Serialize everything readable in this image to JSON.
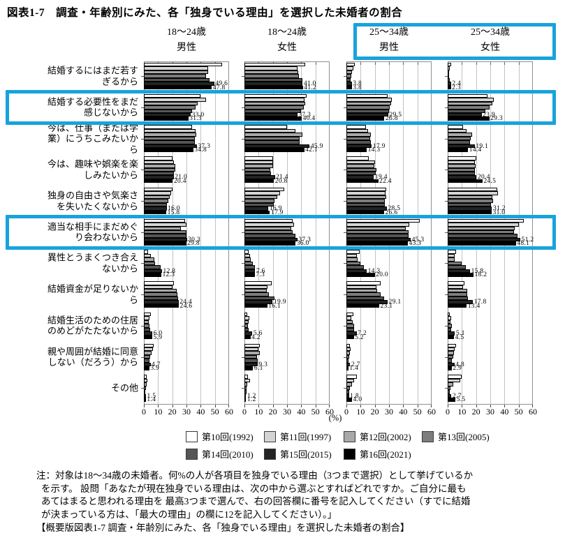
{
  "title": "図表1-7　調査・年齢別にみた、各「独身でいる理由」を選択した未婚者の割合",
  "chart_data": {
    "type": "bar",
    "orientation": "horizontal",
    "value_unit": "(%)",
    "xlim": [
      0,
      60
    ],
    "xticks": [
      0,
      10,
      20,
      30,
      40,
      50,
      60
    ],
    "grid": true,
    "legend_position": "bottom",
    "highlight_color": "#18a3dc",
    "series": [
      {
        "name": "第10回(1992)",
        "color": "#ffffff"
      },
      {
        "name": "第11回(1997)",
        "color": "#d4d4d4"
      },
      {
        "name": "第12回(2002)",
        "color": "#a9a9a9"
      },
      {
        "name": "第13回(2005)",
        "color": "#7d7d7d"
      },
      {
        "name": "第14回(2010)",
        "color": "#555555"
      },
      {
        "name": "第15回(2015)",
        "color": "#232323"
      },
      {
        "name": "第16回(2021)",
        "color": "#000000"
      }
    ],
    "labeled_series_indices": [
      5,
      6
    ],
    "categories": [
      "結婚するにはまだ若す\nぎるから",
      "結婚する必要性をまだ\n感じないから",
      "今は、仕事（または学\n業）にうちこみたいか\nら",
      "今は、趣味や娯楽を楽\nしみたいから",
      "独身の自由さや気楽さ\nを失いたくないから",
      "適当な相手にまだめぐ\nり会わないから",
      "異性とうまくつき合え\nないから",
      "結婚資金が足りないか\nら",
      "結婚生活のための住居\nのめどがたたないから",
      "親や周囲が結婚に同意\nしない（だろう）から",
      "その他"
    ],
    "highlighted_row_indices": [
      1,
      5
    ],
    "highlighted_categories": [
      "結婚する必要性をまだ感じないから",
      "適当な相手にまだめぐり会わないから"
    ],
    "panels": [
      {
        "age": "18～24歳",
        "sex": "男性",
        "highlighted": false,
        "values": [
          [
            55,
            45,
            45,
            44,
            46,
            49.6,
            47.8
          ],
          [
            40,
            44,
            38,
            36.5,
            34,
            33.0,
            31.3
          ],
          [
            34,
            36.5,
            37,
            36,
            36,
            37.3,
            34.8
          ],
          [
            20,
            21,
            22,
            22,
            21,
            21.0,
            20.4
          ],
          [
            20,
            19,
            18,
            17,
            16,
            16.0,
            15.8
          ],
          [
            29,
            30,
            26,
            30,
            30,
            30.3,
            29.8
          ],
          [
            3,
            5,
            7.5,
            8,
            12,
            12.8,
            12.3
          ],
          [
            21,
            20,
            23,
            23.5,
            24,
            24.4,
            24.6
          ],
          [
            5,
            4,
            3.5,
            4,
            4.5,
            6.0,
            5.9
          ],
          [
            7,
            6.5,
            5.5,
            4.5,
            4,
            4.7,
            3.9
          ],
          [
            2,
            2.5,
            2,
            1.5,
            1,
            1.5,
            1.4
          ]
        ]
      },
      {
        "age": "18～24歳",
        "sex": "女性",
        "highlighted": false,
        "values": [
          [
            43,
            37.5,
            38,
            38.5,
            41,
            41.0,
            41.2
          ],
          [
            44,
            42.5,
            43,
            42,
            40,
            37.3,
            40.4
          ],
          [
            30,
            36,
            41,
            39,
            39,
            45.9,
            42.1
          ],
          [
            20,
            20,
            20,
            18,
            18.5,
            21.4,
            20.8
          ],
          [
            28,
            25,
            23,
            21,
            20.5,
            16.9,
            17.9
          ],
          [
            34,
            35,
            33,
            34,
            36,
            37.3,
            36.0
          ],
          [
            3,
            4,
            4.5,
            6,
            7.5,
            7.6,
            7.3
          ],
          [
            19,
            16,
            15.5,
            17,
            21,
            19.9,
            16.1
          ],
          [
            2,
            3.5,
            3,
            2.5,
            3,
            5.6,
            4.2
          ],
          [
            11,
            10,
            11,
            9,
            9.5,
            9.3,
            6.1
          ],
          [
            2.5,
            4,
            2,
            1.5,
            1.5,
            1.2,
            1.2
          ]
        ]
      },
      {
        "age": "25～34歳",
        "sex": "男性",
        "highlighted": true,
        "values": [
          [
            6,
            5,
            4,
            3.5,
            3,
            3.8,
            3.8
          ],
          [
            29,
            32,
            31.5,
            30.5,
            30,
            29.5,
            26.8
          ],
          [
            14,
            15,
            17,
            16.5,
            17,
            17.9,
            14.3
          ],
          [
            15.5,
            20,
            19.5,
            21,
            20.5,
            19.4,
            22.4
          ],
          [
            28,
            27.5,
            28,
            27,
            27,
            28.5,
            26.6
          ],
          [
            51.5,
            44.5,
            42,
            44,
            44,
            45.3,
            43.3
          ],
          [
            9.5,
            7.5,
            8,
            10,
            12.5,
            14.3,
            20.0
          ],
          [
            24,
            21,
            21.5,
            24,
            26.5,
            29.1,
            23.1
          ],
          [
            5,
            3.5,
            4.5,
            5.5,
            5.5,
            7.2,
            5.2
          ],
          [
            2.5,
            3,
            2.5,
            2,
            1.5,
            2.7,
            1.4
          ],
          [
            7.5,
            5.5,
            4,
            2.5,
            2,
            1.8,
            4.0
          ]
        ]
      },
      {
        "age": "25～34歳",
        "sex": "女性",
        "highlighted": true,
        "values": [
          [
            2.5,
            1.5,
            1,
            1,
            1.5,
            2.4,
            2.3
          ],
          [
            28,
            32.5,
            31.5,
            29.5,
            26.5,
            23.9,
            29.3
          ],
          [
            11,
            13.5,
            17,
            16,
            15.5,
            19.1,
            14.4
          ],
          [
            20,
            19,
            19.5,
            19,
            19,
            20.4,
            24.5
          ],
          [
            35,
            35.5,
            31.5,
            32,
            30.5,
            31.2,
            31.0
          ],
          [
            53.5,
            50,
            47,
            46.5,
            49,
            51.2,
            48.1
          ],
          [
            6,
            5,
            5,
            10,
            13,
            15.8,
            18.2
          ],
          [
            12,
            11,
            14,
            14,
            14.5,
            17.8,
            13.4
          ],
          [
            1.5,
            2.5,
            2,
            3,
            2.5,
            5.1,
            4.5
          ],
          [
            6,
            5,
            4.5,
            4,
            3,
            4.8,
            2.9
          ],
          [
            10,
            9,
            4,
            2,
            1.5,
            2.7,
            5.5
          ]
        ]
      }
    ]
  },
  "notes": {
    "lines": [
      "注：対象は18～34歳の未婚者。何%の人が各項目を独身でいる理由（3つまで選択）として挙げているか",
      "を示す。 設問「あなたが現在独身でいる理由は、次の中から選ぶとすればどれですか。ご自分に最も",
      "あてはまると思われる理由を 最高3つまで選んで、右の回答欄に番号を記入してください（すでに結婚",
      "が決まっている方は、「最大の理由」の欄に12を記入してください）。」",
      "【概要版図表1-7 調査・年齢別にみた、各「独身でいる理由」を選択した未婚者の割合】"
    ]
  }
}
